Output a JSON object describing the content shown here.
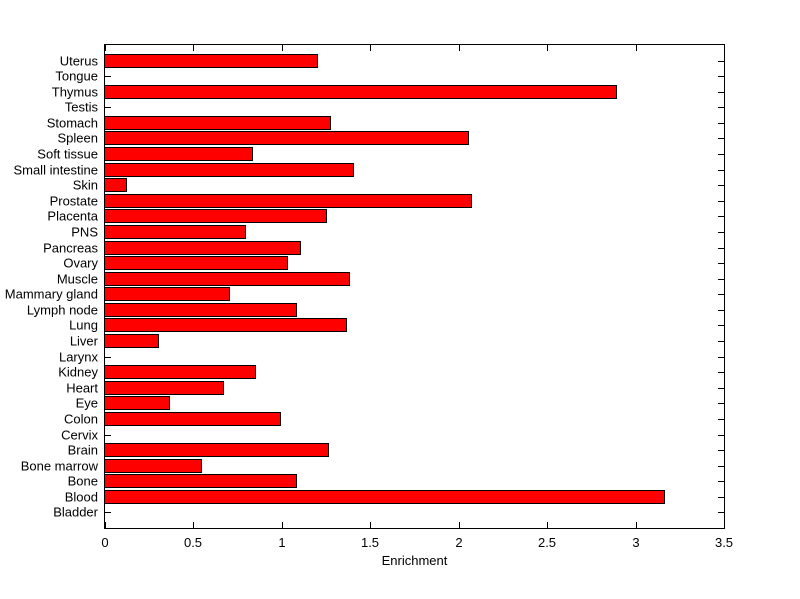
{
  "figure": {
    "background_color": "#ffffff",
    "axis_color": "#000000",
    "bar_fill_color": "#ff0000",
    "bar_edge_color": "#000000"
  },
  "chart_data": {
    "type": "bar",
    "orientation": "horizontal",
    "title": "",
    "xlabel": "Enrichment",
    "ylabel": "",
    "xlim": [
      0,
      3.5
    ],
    "xticks": [
      0,
      0.5,
      1,
      1.5,
      2,
      2.5,
      3,
      3.5
    ],
    "xtick_labels": [
      "0",
      "0.5",
      "1",
      "1.5",
      "2",
      "2.5",
      "3",
      "3.5"
    ],
    "grid": false,
    "legend": null,
    "categories_top_to_bottom": [
      "Uterus",
      "Tongue",
      "Thymus",
      "Testis",
      "Stomach",
      "Spleen",
      "Soft tissue",
      "Small intestine",
      "Skin",
      "Prostate",
      "Placenta",
      "PNS",
      "Pancreas",
      "Ovary",
      "Muscle",
      "Mammary gland",
      "Lymph node",
      "Lung",
      "Liver",
      "Larynx",
      "Kidney",
      "Heart",
      "Eye",
      "Colon",
      "Cervix",
      "Brain",
      "Bone marrow",
      "Bone",
      "Blood",
      "Bladder"
    ],
    "values": [
      1.2,
      0,
      2.89,
      0,
      1.27,
      2.05,
      0.83,
      1.4,
      0.12,
      2.07,
      1.25,
      0.79,
      1.1,
      1.03,
      1.38,
      0.7,
      1.08,
      1.36,
      0.3,
      0,
      0.85,
      0.67,
      0.36,
      0.99,
      0,
      1.26,
      0.54,
      1.08,
      3.16,
      0
    ]
  }
}
